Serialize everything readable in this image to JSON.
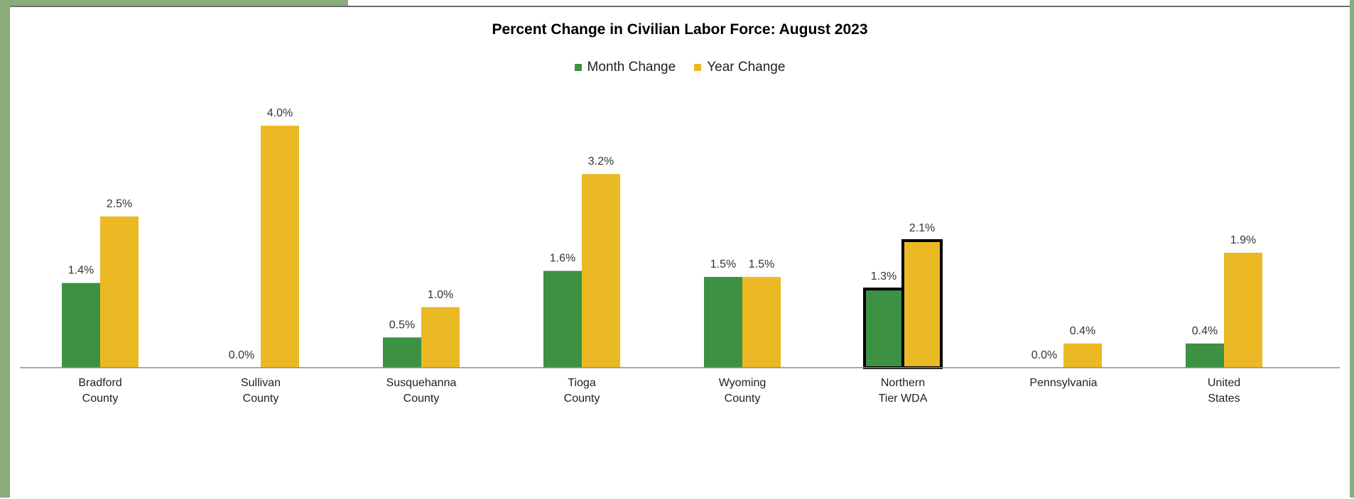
{
  "chart_data": {
    "type": "bar",
    "title": "Percent Change in Civilian Labor Force: August 2023",
    "categories": [
      [
        "Bradford",
        "County"
      ],
      [
        "Sullivan",
        "County"
      ],
      [
        "Susquehanna",
        "County"
      ],
      [
        "Tioga",
        "County"
      ],
      [
        "Wyoming",
        "County"
      ],
      [
        "Northern",
        "Tier WDA"
      ],
      [
        "Pennsylvania"
      ],
      [
        "United",
        "States"
      ]
    ],
    "series": [
      {
        "name": "Month Change",
        "color": "#3d9142",
        "values": [
          1.4,
          0.0,
          0.5,
          1.6,
          1.5,
          1.3,
          0.0,
          0.4
        ]
      },
      {
        "name": "Year Change",
        "color": "#ebb924",
        "values": [
          2.5,
          4.0,
          1.0,
          3.2,
          1.5,
          2.1,
          0.4,
          1.9
        ]
      }
    ],
    "data_labels": [
      [
        "1.4%",
        "0.0%",
        "0.5%",
        "1.6%",
        "1.5%",
        "1.3%",
        "0.0%",
        "0.4%"
      ],
      [
        "2.5%",
        "4.0%",
        "1.0%",
        "3.2%",
        "1.5%",
        "2.1%",
        "0.4%",
        "1.9%"
      ]
    ],
    "highlight_category": "Northern Tier WDA",
    "ylim": [
      0,
      4.2
    ],
    "legend_position": "top-center",
    "grid": false,
    "xlabel": "",
    "ylabel": ""
  }
}
